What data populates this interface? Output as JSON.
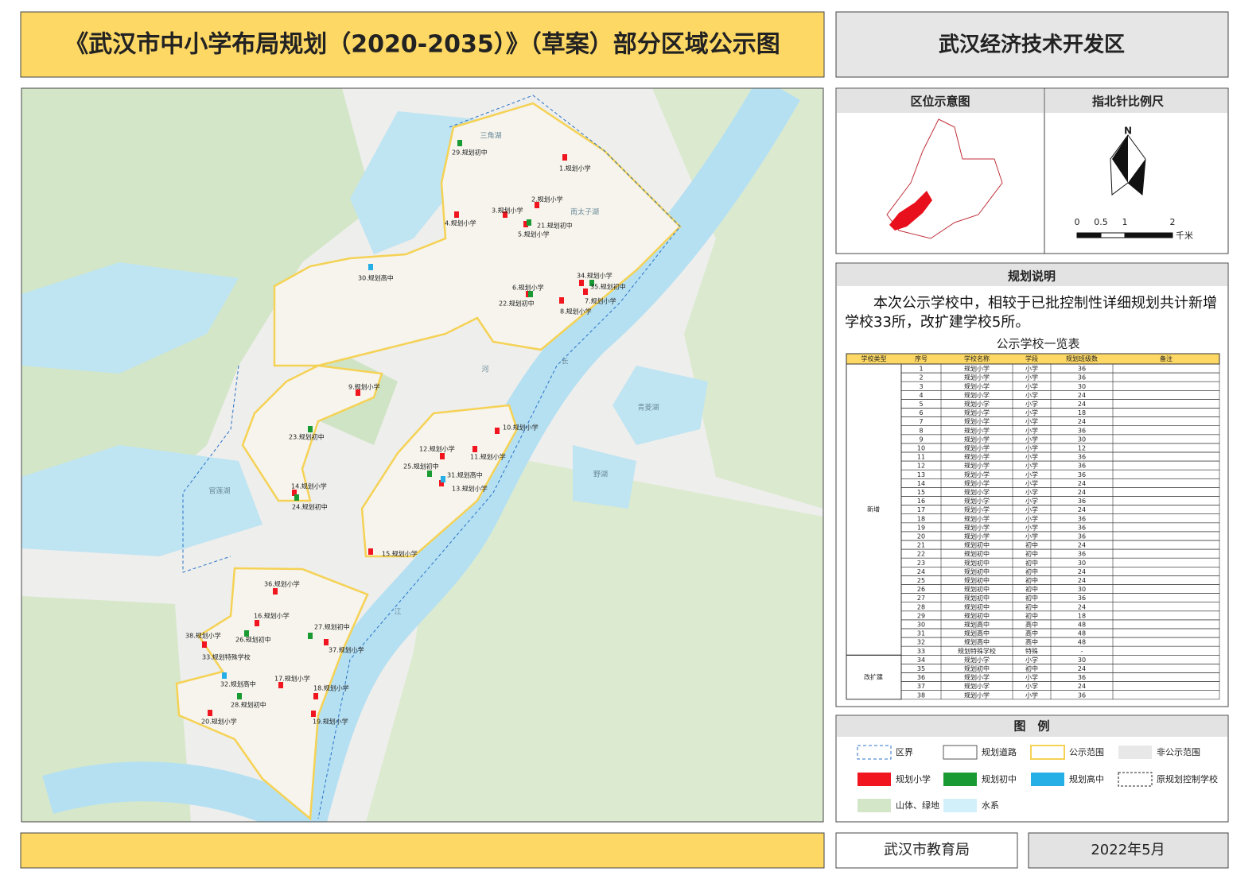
{
  "header": {
    "title": "《武汉市中小学布局规划（2020-2035）》（草案）部分区域公示图",
    "district": "武汉经济技术开发区"
  },
  "location_map": {
    "title": "区位示意图"
  },
  "north_scale": {
    "title": "指北针比例尺",
    "north": "N",
    "scale_labels": [
      "0",
      "0.5",
      "1",
      "2"
    ],
    "unit": "千米"
  },
  "notes": {
    "title": "规划说明",
    "text": "本次公示学校中，相较于已批控制性详细规划共计新增学校33所，改扩建学校5所。"
  },
  "table": {
    "title": "公示学校一览表",
    "header": [
      "学校类型",
      "序号",
      "学校名称",
      "学段",
      "规划班级数",
      "备注"
    ],
    "groups": [
      {
        "name": "新增",
        "rows": 33
      },
      {
        "name": "改扩建",
        "rows": 5
      }
    ],
    "rows": [
      [
        1,
        "规划小学",
        "小学",
        36
      ],
      [
        2,
        "规划小学",
        "小学",
        36
      ],
      [
        3,
        "规划小学",
        "小学",
        30
      ],
      [
        4,
        "规划小学",
        "小学",
        24
      ],
      [
        5,
        "规划小学",
        "小学",
        24
      ],
      [
        6,
        "规划小学",
        "小学",
        18
      ],
      [
        7,
        "规划小学",
        "小学",
        24
      ],
      [
        8,
        "规划小学",
        "小学",
        36
      ],
      [
        9,
        "规划小学",
        "小学",
        30
      ],
      [
        10,
        "规划小学",
        "小学",
        12
      ],
      [
        11,
        "规划小学",
        "小学",
        36
      ],
      [
        12,
        "规划小学",
        "小学",
        36
      ],
      [
        13,
        "规划小学",
        "小学",
        36
      ],
      [
        14,
        "规划小学",
        "小学",
        24
      ],
      [
        15,
        "规划小学",
        "小学",
        24
      ],
      [
        16,
        "规划小学",
        "小学",
        36
      ],
      [
        17,
        "规划小学",
        "小学",
        24
      ],
      [
        18,
        "规划小学",
        "小学",
        36
      ],
      [
        19,
        "规划小学",
        "小学",
        36
      ],
      [
        20,
        "规划小学",
        "小学",
        36
      ],
      [
        21,
        "规划初中",
        "初中",
        24
      ],
      [
        22,
        "规划初中",
        "初中",
        36
      ],
      [
        23,
        "规划初中",
        "初中",
        30
      ],
      [
        24,
        "规划初中",
        "初中",
        24
      ],
      [
        25,
        "规划初中",
        "初中",
        24
      ],
      [
        26,
        "规划初中",
        "初中",
        30
      ],
      [
        27,
        "规划初中",
        "初中",
        36
      ],
      [
        28,
        "规划初中",
        "初中",
        24
      ],
      [
        29,
        "规划初中",
        "初中",
        18
      ],
      [
        30,
        "规划高中",
        "高中",
        48
      ],
      [
        31,
        "规划高中",
        "高中",
        48
      ],
      [
        32,
        "规划高中",
        "高中",
        48
      ],
      [
        33,
        "规划特殊学校",
        "特殊",
        "-"
      ],
      [
        34,
        "规划小学",
        "小学",
        30
      ],
      [
        35,
        "规划初中",
        "初中",
        24
      ],
      [
        36,
        "规划小学",
        "小学",
        36
      ],
      [
        37,
        "规划小学",
        "小学",
        24
      ],
      [
        38,
        "规划小学",
        "小学",
        36
      ]
    ]
  },
  "legend": {
    "title": "图　例",
    "items": [
      {
        "label": "区界"
      },
      {
        "label": "规划道路"
      },
      {
        "label": "公示范围"
      },
      {
        "label": "非公示范围"
      },
      {
        "label": "规划小学",
        "color": "#f0151e"
      },
      {
        "label": "规划初中",
        "color": "#1a9a32"
      },
      {
        "label": "规划高中",
        "color": "#26aee6"
      },
      {
        "label": "原规划控制学校"
      },
      {
        "label": "山体、绿地"
      },
      {
        "label": "水系"
      }
    ]
  },
  "map": {
    "schools": [
      "1.规划小学",
      "2.规划小学",
      "3.规划小学",
      "4.规划小学",
      "5.规划小学",
      "6.规划小学",
      "7.规划小学",
      "8.规划小学",
      "9.规划小学",
      "10.规划小学",
      "11.规划小学",
      "12.规划小学",
      "13.规划小学",
      "14.规划小学",
      "15.规划小学",
      "16.规划小学",
      "17.规划小学",
      "18.规划小学",
      "19.规划小学",
      "20.规划小学",
      "21.规划初中",
      "22.规划初中",
      "23.规划初中",
      "24.规划初中",
      "25.规划初中",
      "26.规划初中",
      "27.规划初中",
      "28.规划初中",
      "29.规划初中",
      "30.规划高中",
      "31.规划高中",
      "32.规划高中",
      "33.规划特殊学校",
      "34.规划小学",
      "35.规划初中",
      "36.规划小学",
      "37.规划小学",
      "38.规划小学"
    ],
    "places": [
      "三角湖",
      "南太子湖",
      "官莲湖",
      "青菱湖",
      "野湖",
      "江",
      "长",
      "河"
    ]
  },
  "footer": {
    "org": "武汉市教育局",
    "date": "2022年5月"
  }
}
